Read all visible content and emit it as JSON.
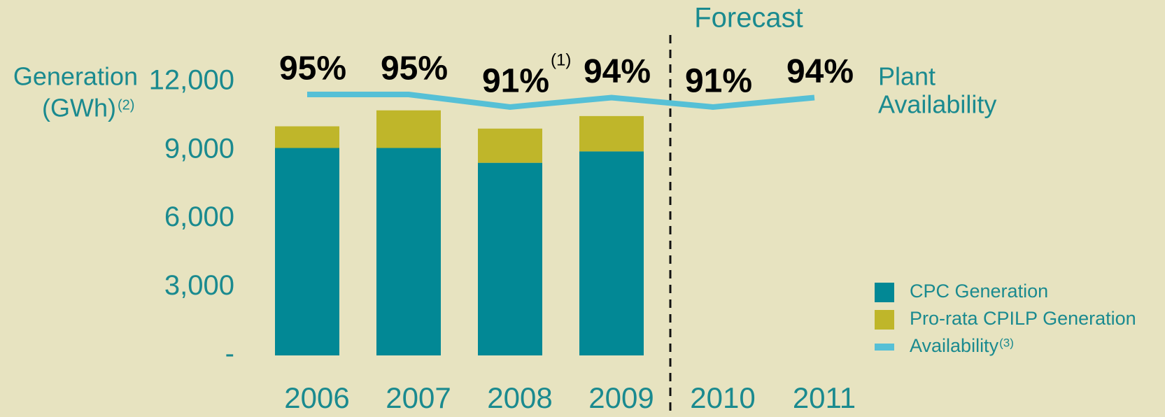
{
  "chart_data": {
    "type": "bar",
    "categories": [
      "2006",
      "2007",
      "2008",
      "2009",
      "2010",
      "2011"
    ],
    "series": [
      {
        "name": "CPC Generation",
        "color": "#028895",
        "values": [
          9100,
          9100,
          8450,
          8950,
          null,
          null
        ]
      },
      {
        "name": "Pro-rata CPILP Generation",
        "color": "#bfb62a",
        "values": [
          950,
          1650,
          1500,
          1550,
          null,
          null
        ]
      },
      {
        "name": "Availability",
        "name_note": "(3)",
        "color": "#56c0d6",
        "type": "line",
        "axis": "y2",
        "values": [
          95,
          95,
          91,
          94,
          91,
          94
        ],
        "value_labels": [
          "95%",
          "95%",
          "91%",
          "94%",
          "91%",
          "94%"
        ]
      }
    ],
    "stacked": true,
    "y_label": [
      "Generation",
      "(GWh)"
    ],
    "y_label_note": "(2)",
    "ylim": [
      0,
      12000
    ],
    "yticks": [
      {
        "value": 0,
        "label": "-"
      },
      {
        "value": 3000,
        "label": "3,000"
      },
      {
        "value": 6000,
        "label": "6,000"
      },
      {
        "value": 9000,
        "label": "9,000"
      },
      {
        "value": 12000,
        "label": "12,000"
      }
    ],
    "y2lim": [
      12,
      99
    ],
    "annotations": {
      "forecast": "Forecast",
      "note_2008": "(1)",
      "line_label": [
        "Plant",
        "Availability"
      ]
    },
    "legend": "bottom-right"
  }
}
